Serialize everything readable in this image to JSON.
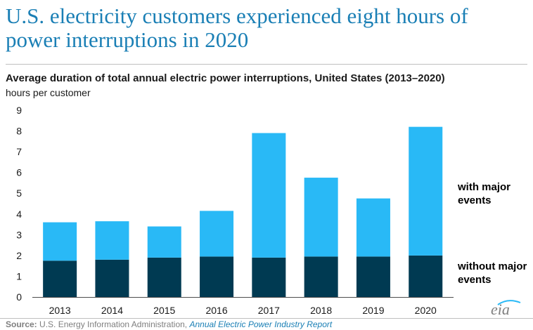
{
  "headline": "U.S. electricity customers experienced eight hours of power interruptions in 2020",
  "source_label": "Source:",
  "source_agency": "U.S. Energy Information Administration,",
  "source_report": "Annual Electric Power Industry Report",
  "logo_text": "eia",
  "colors": {
    "with_major": "#29b9f6",
    "without_major": "#003a52",
    "headline": "#1a7fb5"
  },
  "chart_data": {
    "type": "bar",
    "stacked": true,
    "title": "Average duration of total annual electric power interruptions, United States (2013–2020)",
    "ylabel": "hours per customer",
    "xlabel": "",
    "ylim": [
      0,
      9
    ],
    "yticks": [
      "0",
      "1",
      "2",
      "3",
      "4",
      "5",
      "6",
      "7",
      "8",
      "9"
    ],
    "categories": [
      "2013",
      "2014",
      "2015",
      "2016",
      "2017",
      "2018",
      "2019",
      "2020"
    ],
    "series": [
      {
        "name": "without major events",
        "values": [
          1.75,
          1.8,
          1.9,
          1.95,
          1.9,
          1.95,
          1.95,
          2.0
        ]
      },
      {
        "name": "with major events",
        "values": [
          1.85,
          1.85,
          1.5,
          2.2,
          6.0,
          3.8,
          2.8,
          6.2
        ]
      }
    ],
    "grid": false,
    "legend_placement": "right"
  }
}
